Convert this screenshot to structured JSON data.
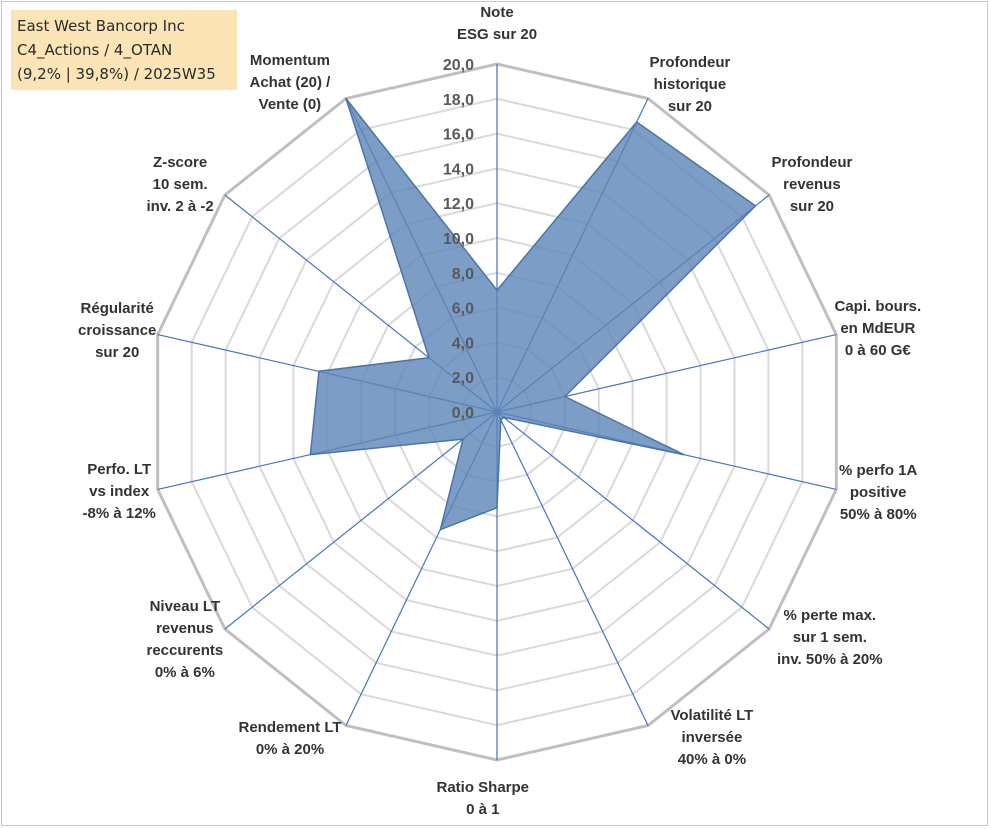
{
  "info_box": {
    "line1": "East West Bancorp Inc",
    "line2": "C4_Actions / 4_OTAN",
    "line3": "(9,2% | 39,8%) / 2025W35"
  },
  "chart_data": {
    "type": "radar",
    "title": "",
    "rmin": 0,
    "rmax": 20,
    "tick_step": 2,
    "tick_labels": [
      "0,0",
      "2,0",
      "4,0",
      "6,0",
      "8,0",
      "10,0",
      "12,0",
      "14,0",
      "16,0",
      "18,0",
      "20,0"
    ],
    "categories": [
      [
        "Note",
        "ESG sur 20"
      ],
      [
        "Profondeur",
        "historique",
        "sur 20"
      ],
      [
        "Profondeur",
        "revenus",
        "sur 20"
      ],
      [
        "Capi. bours.",
        "en MdEUR",
        "0 à 60 G€"
      ],
      [
        "% perfo 1A",
        "positive",
        "50% à 80%"
      ],
      [
        "% perte max.",
        "sur 1 sem.",
        "inv. 50% à 20%"
      ],
      [
        "Volatilité LT",
        "inversée",
        "40% à 0%"
      ],
      [
        "Ratio Sharpe",
        "0 à 1"
      ],
      [
        "Rendement LT",
        "0% à 20%"
      ],
      [
        "Niveau LT",
        "revenus",
        "reccurents",
        "0% à 6%"
      ],
      [
        "Perfo. LT",
        "vs index",
        "-8% à 12%"
      ],
      [
        "Régularité",
        "croissance",
        "sur 20"
      ],
      [
        "Z-score",
        "10 sem.",
        "inv. 2 à -2"
      ],
      [
        "Momentum",
        "Achat (20) /",
        "Vente (0)"
      ]
    ],
    "series": [
      {
        "values": [
          7.0,
          18.5,
          19.0,
          4.0,
          11.0,
          0.5,
          0.5,
          5.5,
          7.5,
          2.5,
          11.0,
          10.5,
          5.0,
          20.0
        ]
      }
    ],
    "grid": true,
    "legend": "none",
    "colors": {
      "fill": "#5b85b6",
      "fill_opacity": 0.8,
      "outline": "#4a74a8",
      "spoke": "#4472c4",
      "ring": "#d9d9d9",
      "outer_ring": "#bfbfbf",
      "tick_text": "#595959",
      "info_bg": "#fbe5b6"
    }
  }
}
